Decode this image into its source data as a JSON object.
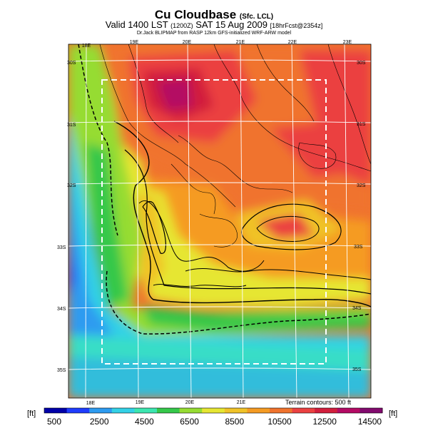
{
  "header": {
    "title": "Cu Cloudbase",
    "title_suffix": "(Sfc. LCL)",
    "subtitle": "Valid 1400 LST",
    "subtitle_time": "(1200Z)",
    "subtitle_date": "SAT 15 Aug 2009",
    "subtitle_forecast": "[18hrFcst@2354z]",
    "credit": "Dr.Jack BLIPMAP from RASP 12km GFS-initialized WRF-ARW model"
  },
  "map": {
    "lon_labels_top": [
      "18E",
      "19E",
      "20E",
      "21E",
      "22E",
      "23E"
    ],
    "lon_labels_bottom": [
      "18E",
      "19E",
      "20E",
      "21E"
    ],
    "lat_labels_left": [
      "30S",
      "31S",
      "32S",
      "33S",
      "34S",
      "35S"
    ],
    "lat_labels_right": [
      "30S",
      "31S",
      "32S",
      "33S",
      "34S",
      "35S"
    ],
    "terrain_note": "Terrain contours: 500 ft"
  },
  "colorbar": {
    "units_left": "[ft]",
    "units_right": "[ft]",
    "labels": [
      "500",
      "2500",
      "4500",
      "6500",
      "8500",
      "10500",
      "12500",
      "14500"
    ],
    "colors": [
      "#0000a8",
      "#1e3cff",
      "#2d9bf0",
      "#33d1e6",
      "#3ce6b0",
      "#35c84a",
      "#96dc32",
      "#e6e632",
      "#f0c328",
      "#f59b23",
      "#f0732d",
      "#eb4141",
      "#d21e3c",
      "#b40a64",
      "#820a6e"
    ]
  }
}
